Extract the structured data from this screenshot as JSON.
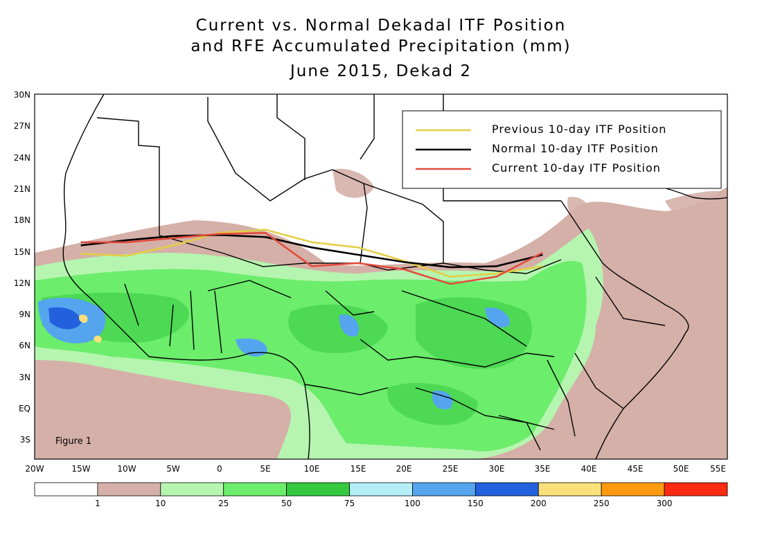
{
  "title": {
    "line1": "Current vs. Normal Dekadal ITF Position",
    "line2": "and RFE Accumulated Precipitation (mm)",
    "line3": "June 2015, Dekad 2"
  },
  "figure_label": "Figure 1",
  "lat_ticks": [
    "30N",
    "27N",
    "24N",
    "21N",
    "18N",
    "15N",
    "12N",
    "9N",
    "6N",
    "3N",
    "EQ",
    "3S"
  ],
  "lon_ticks": [
    "20W",
    "15W",
    "10W",
    "5W",
    "0",
    "5E",
    "10E",
    "15E",
    "20E",
    "25E",
    "30E",
    "35E",
    "40E",
    "45E",
    "50E",
    "55E"
  ],
  "legend": {
    "items": [
      {
        "label": "Previous 10-day ITF Position",
        "color": "#e3cf44"
      },
      {
        "label": "Normal 10-day ITF Position",
        "color": "#000000"
      },
      {
        "label": "Current 10-day ITF Position",
        "color": "#e14b3c"
      }
    ]
  },
  "colorbar": {
    "colors": [
      "#ffffff",
      "#d5b0a8",
      "#b5f5b0",
      "#6ced6c",
      "#35c940",
      "#b5eef7",
      "#55a5ee",
      "#2260dd",
      "#f9e07a",
      "#ff9a10",
      "#ff2a10"
    ],
    "labels": [
      "1",
      "10",
      "25",
      "50",
      "75",
      "100",
      "150",
      "200",
      "250",
      "300"
    ]
  },
  "itf_lines": {
    "previous": [
      [
        -15,
        14.7
      ],
      [
        -10,
        14.5
      ],
      [
        -5,
        15.5
      ],
      [
        0,
        16.7
      ],
      [
        5,
        17.0
      ],
      [
        10,
        15.8
      ],
      [
        15,
        15.3
      ],
      [
        20,
        14.0
      ],
      [
        25,
        12.5
      ],
      [
        30,
        12.8
      ],
      [
        35,
        13.5
      ]
    ],
    "normal": [
      [
        -15,
        15.5
      ],
      [
        -10,
        16.0
      ],
      [
        -5,
        16.4
      ],
      [
        0,
        16.5
      ],
      [
        5,
        16.3
      ],
      [
        10,
        15.3
      ],
      [
        15,
        14.6
      ],
      [
        20,
        13.9
      ],
      [
        25,
        13.4
      ],
      [
        30,
        13.5
      ],
      [
        35,
        14.6
      ]
    ],
    "current": [
      [
        -15,
        15.8
      ],
      [
        -10,
        15.8
      ],
      [
        -5,
        16.2
      ],
      [
        0,
        16.6
      ],
      [
        5,
        16.7
      ],
      [
        10,
        13.5
      ],
      [
        15,
        13.8
      ],
      [
        20,
        13.2
      ],
      [
        25,
        11.8
      ],
      [
        30,
        12.5
      ],
      [
        35,
        14.8
      ]
    ]
  }
}
